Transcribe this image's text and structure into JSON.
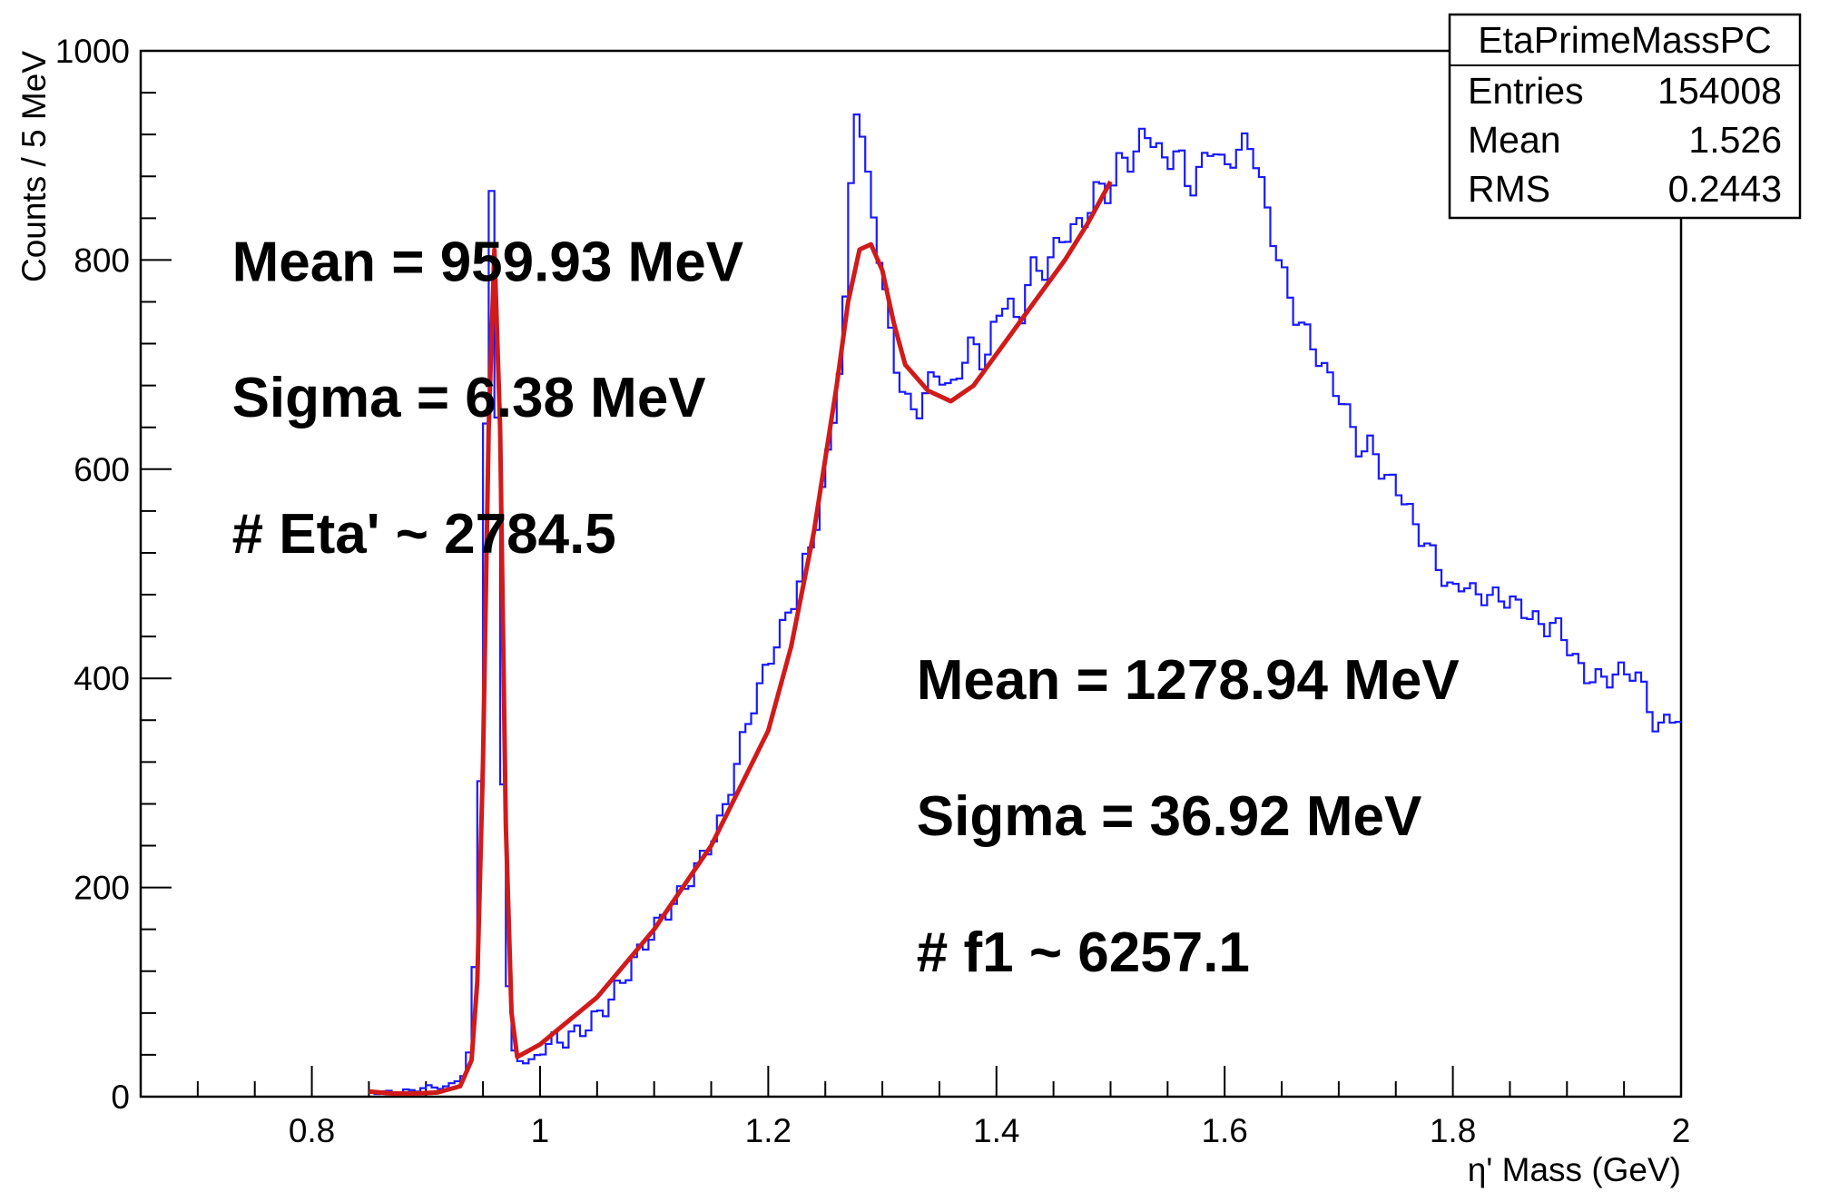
{
  "chart_data": {
    "type": "histogram",
    "title": "",
    "xlabel": "η' Mass (GeV)",
    "ylabel": "Counts / 5 MeV",
    "xlim": [
      0.65,
      2.0
    ],
    "ylim": [
      0,
      1000
    ],
    "x_ticks": [
      {
        "value": 0.8,
        "label": "0.8"
      },
      {
        "value": 1.0,
        "label": "1"
      },
      {
        "value": 1.2,
        "label": "1.2"
      },
      {
        "value": 1.4,
        "label": "1.4"
      },
      {
        "value": 1.6,
        "label": "1.6"
      },
      {
        "value": 1.8,
        "label": "1.8"
      },
      {
        "value": 2.0,
        "label": "2"
      }
    ],
    "y_ticks": [
      {
        "value": 0,
        "label": "0"
      },
      {
        "value": 200,
        "label": "200"
      },
      {
        "value": 400,
        "label": "400"
      },
      {
        "value": 600,
        "label": "600"
      },
      {
        "value": 800,
        "label": "800"
      },
      {
        "value": 1000,
        "label": "1000"
      }
    ],
    "histogram": {
      "color": "#1a1aff",
      "bin_width": 0.005,
      "points": [
        [
          0.85,
          5
        ],
        [
          0.87,
          3
        ],
        [
          0.89,
          4
        ],
        [
          0.9,
          8
        ],
        [
          0.92,
          10
        ],
        [
          0.935,
          25
        ],
        [
          0.94,
          60
        ],
        [
          0.945,
          190
        ],
        [
          0.95,
          420
        ],
        [
          0.955,
          870
        ],
        [
          0.96,
          860
        ],
        [
          0.965,
          440
        ],
        [
          0.97,
          160
        ],
        [
          0.975,
          48
        ],
        [
          0.98,
          35
        ],
        [
          0.99,
          30
        ],
        [
          1.0,
          40
        ],
        [
          1.02,
          55
        ],
        [
          1.04,
          75
        ],
        [
          1.06,
          95
        ],
        [
          1.08,
          120
        ],
        [
          1.1,
          150
        ],
        [
          1.12,
          185
        ],
        [
          1.14,
          230
        ],
        [
          1.16,
          275
        ],
        [
          1.18,
          350
        ],
        [
          1.2,
          405
        ],
        [
          1.22,
          460
        ],
        [
          1.24,
          540
        ],
        [
          1.25,
          600
        ],
        [
          1.26,
          680
        ],
        [
          1.265,
          730
        ],
        [
          1.27,
          800
        ],
        [
          1.275,
          955
        ],
        [
          1.28,
          950
        ],
        [
          1.285,
          890
        ],
        [
          1.29,
          860
        ],
        [
          1.3,
          780
        ],
        [
          1.31,
          700
        ],
        [
          1.32,
          660
        ],
        [
          1.33,
          645
        ],
        [
          1.34,
          680
        ],
        [
          1.35,
          700
        ],
        [
          1.36,
          680
        ],
        [
          1.37,
          710
        ],
        [
          1.38,
          730
        ],
        [
          1.39,
          700
        ],
        [
          1.4,
          740
        ],
        [
          1.41,
          760
        ],
        [
          1.42,
          720
        ],
        [
          1.43,
          790
        ],
        [
          1.44,
          780
        ],
        [
          1.45,
          810
        ],
        [
          1.46,
          830
        ],
        [
          1.47,
          840
        ],
        [
          1.48,
          850
        ],
        [
          1.49,
          880
        ],
        [
          1.5,
          860
        ],
        [
          1.51,
          900
        ],
        [
          1.52,
          880
        ],
        [
          1.53,
          920
        ],
        [
          1.54,
          900
        ],
        [
          1.55,
          890
        ],
        [
          1.56,
          910
        ],
        [
          1.57,
          870
        ],
        [
          1.58,
          900
        ],
        [
          1.59,
          920
        ],
        [
          1.6,
          890
        ],
        [
          1.61,
          900
        ],
        [
          1.62,
          910
        ],
        [
          1.63,
          880
        ],
        [
          1.64,
          820
        ],
        [
          1.65,
          790
        ],
        [
          1.66,
          750
        ],
        [
          1.67,
          740
        ],
        [
          1.68,
          720
        ],
        [
          1.69,
          700
        ],
        [
          1.7,
          680
        ],
        [
          1.71,
          650
        ],
        [
          1.72,
          610
        ],
        [
          1.73,
          620
        ],
        [
          1.74,
          580
        ],
        [
          1.75,
          580
        ],
        [
          1.76,
          560
        ],
        [
          1.77,
          540
        ],
        [
          1.78,
          530
        ],
        [
          1.79,
          510
        ],
        [
          1.8,
          490
        ],
        [
          1.81,
          500
        ],
        [
          1.82,
          480
        ],
        [
          1.83,
          475
        ],
        [
          1.84,
          470
        ],
        [
          1.85,
          465
        ],
        [
          1.86,
          460
        ],
        [
          1.87,
          455
        ],
        [
          1.88,
          450
        ],
        [
          1.89,
          460
        ],
        [
          1.9,
          445
        ],
        [
          1.91,
          420
        ],
        [
          1.92,
          405
        ],
        [
          1.93,
          400
        ],
        [
          1.94,
          395
        ],
        [
          1.95,
          400
        ],
        [
          1.96,
          395
        ],
        [
          1.97,
          380
        ],
        [
          1.98,
          340
        ],
        [
          1.99,
          375
        ],
        [
          2.0,
          360
        ]
      ]
    },
    "fit": {
      "color": "#d11a1a",
      "points": [
        [
          0.85,
          5
        ],
        [
          0.87,
          3
        ],
        [
          0.89,
          3
        ],
        [
          0.91,
          4
        ],
        [
          0.93,
          10
        ],
        [
          0.94,
          35
        ],
        [
          0.945,
          110
        ],
        [
          0.95,
          320
        ],
        [
          0.955,
          640
        ],
        [
          0.96,
          810
        ],
        [
          0.965,
          640
        ],
        [
          0.97,
          260
        ],
        [
          0.975,
          80
        ],
        [
          0.98,
          38
        ],
        [
          1.0,
          50
        ],
        [
          1.05,
          95
        ],
        [
          1.1,
          160
        ],
        [
          1.15,
          240
        ],
        [
          1.2,
          350
        ],
        [
          1.22,
          430
        ],
        [
          1.24,
          540
        ],
        [
          1.26,
          680
        ],
        [
          1.27,
          760
        ],
        [
          1.28,
          810
        ],
        [
          1.29,
          815
        ],
        [
          1.3,
          790
        ],
        [
          1.31,
          740
        ],
        [
          1.32,
          700
        ],
        [
          1.34,
          675
        ],
        [
          1.36,
          665
        ],
        [
          1.38,
          680
        ],
        [
          1.4,
          710
        ],
        [
          1.42,
          740
        ],
        [
          1.44,
          770
        ],
        [
          1.46,
          800
        ],
        [
          1.48,
          835
        ],
        [
          1.5,
          875
        ]
      ]
    },
    "annotations": [
      {
        "text": "Mean = 959.93 MeV",
        "x": 0.73,
        "y": 780
      },
      {
        "text": "Sigma = 6.38 MeV",
        "x": 0.73,
        "y": 650
      },
      {
        "text": "# Eta' ~ 2784.5",
        "x": 0.73,
        "y": 520
      },
      {
        "text": "Mean = 1278.94 MeV",
        "x": 1.33,
        "y": 380
      },
      {
        "text": "Sigma = 36.92 MeV",
        "x": 1.33,
        "y": 250
      },
      {
        "text": "# f1 ~ 6257.1",
        "x": 1.33,
        "y": 120
      }
    ],
    "stats_box": {
      "title": "EtaPrimeMassPC",
      "rows": [
        {
          "label": "Entries",
          "value": "154008"
        },
        {
          "label": "Mean",
          "value": "1.526"
        },
        {
          "label": "RMS",
          "value": "0.2443"
        }
      ]
    }
  }
}
